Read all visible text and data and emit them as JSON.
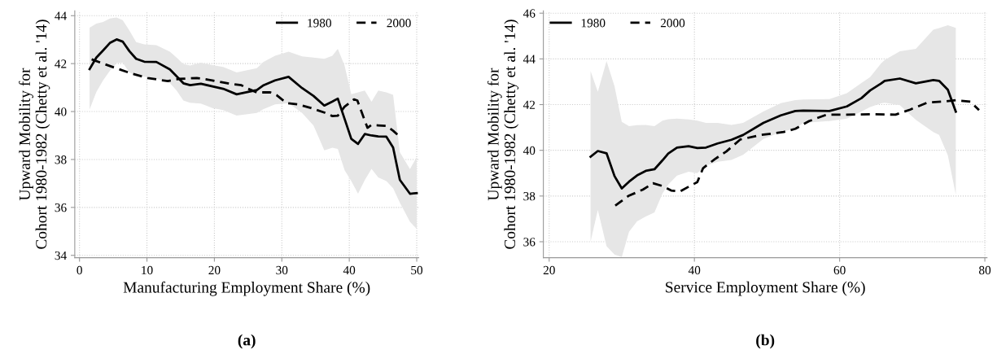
{
  "chart_data": [
    {
      "type": "line",
      "xlabel": "Manufacturing Employment Share (%)",
      "ylabel": "Upward Mobility for\nCohort 1980-1982 (Chetty et al. '14)",
      "xlim": [
        -0.7,
        50.3
      ],
      "ylim": [
        33.9,
        44.2
      ],
      "xticks": [
        0,
        10,
        20,
        30,
        40,
        50
      ],
      "yticks": [
        34,
        36,
        38,
        40,
        42,
        44
      ],
      "grid": true,
      "legend": "top right",
      "annotations": [
        "(a)"
      ],
      "series": [
        {
          "name": "1980",
          "color": "#000000",
          "line_style": "solid",
          "x": [
            1.5,
            2.5,
            3.5,
            4.5,
            5.5,
            6.4,
            7.4,
            8.4,
            9.6,
            11.4,
            13.4,
            14.4,
            15.4,
            16.4,
            18,
            19.7,
            21.3,
            23.3,
            26.3,
            27.3,
            29,
            31,
            33,
            34.7,
            36.3,
            37.5,
            38.3,
            39.3,
            40.3,
            41.3,
            42.3,
            43.3,
            44.3,
            45.5,
            46.5,
            47.5,
            49,
            50
          ],
          "values": [
            41.77,
            42.25,
            42.55,
            42.86,
            43.01,
            42.92,
            42.52,
            42.2,
            42.08,
            42.07,
            41.76,
            41.47,
            41.18,
            41.1,
            41.16,
            41.05,
            40.95,
            40.72,
            40.9,
            41.1,
            41.3,
            41.45,
            40.98,
            40.65,
            40.25,
            40.42,
            40.54,
            39.7,
            38.86,
            38.65,
            39.06,
            39.0,
            38.96,
            38.95,
            38.5,
            37.15,
            36.57,
            36.6
          ],
          "upper": [
            43.5,
            43.67,
            43.74,
            43.88,
            43.92,
            43.81,
            43.38,
            42.9,
            42.8,
            42.77,
            42.5,
            42.25,
            41.98,
            41.92,
            42.04,
            41.94,
            41.86,
            41.63,
            41.81,
            42.07,
            42.33,
            42.5,
            42.3,
            42.25,
            42.2,
            42.33,
            42.62,
            41.92,
            40.72,
            40.8,
            40.88,
            40.41,
            40.88,
            40.8,
            40.7,
            38.3,
            37.6,
            38.1
          ],
          "lower": [
            40.09,
            40.82,
            41.3,
            41.7,
            42.02,
            42.04,
            41.63,
            41.5,
            41.45,
            41.38,
            41.19,
            40.88,
            40.46,
            40.37,
            40.33,
            40.15,
            40.06,
            39.83,
            39.94,
            40.1,
            40.3,
            40.35,
            39.94,
            39.42,
            38.38,
            38.49,
            38.44,
            37.56,
            37.1,
            36.57,
            37.14,
            37.61,
            37.25,
            37.1,
            36.8,
            36.2,
            35.4,
            35.1
          ]
        },
        {
          "name": "2000",
          "color": "#000000",
          "line_style": "dashed",
          "x": [
            1.8,
            3.5,
            5.5,
            7.8,
            10.1,
            13.1,
            14.7,
            17.4,
            19.7,
            22.3,
            24,
            25,
            26.3,
            28.3,
            29.3,
            30.7,
            32.3,
            34.3,
            36.3,
            37.5,
            38.3,
            39.3,
            40.7,
            41.2,
            42.7,
            43.3,
            44.3,
            45.5,
            46.5,
            47.5
          ],
          "values": [
            42.18,
            42.0,
            41.8,
            41.58,
            41.4,
            41.27,
            41.36,
            41.4,
            41.3,
            41.16,
            41.1,
            40.95,
            40.8,
            40.8,
            40.67,
            40.35,
            40.3,
            40.15,
            39.96,
            39.81,
            39.83,
            40.2,
            40.51,
            40.46,
            39.32,
            39.44,
            39.42,
            39.4,
            39.2,
            38.95
          ]
        }
      ]
    },
    {
      "type": "line",
      "xlabel": "Service Employment Share (%)",
      "ylabel": "Upward Mobility for\nCohort 1980-1982 (Chetty et al. '14)",
      "xlim": [
        19.2,
        80.3
      ],
      "ylim": [
        35.3,
        46.1
      ],
      "xticks": [
        20,
        40,
        60,
        80
      ],
      "yticks": [
        36,
        38,
        40,
        42,
        44,
        46
      ],
      "grid": true,
      "legend": "top left",
      "annotations": [
        "(b)"
      ],
      "series": [
        {
          "name": "1980",
          "color": "#000000",
          "line_style": "solid",
          "x": [
            25.7,
            26.7,
            27.9,
            29.0,
            30.0,
            31.0,
            32.1,
            33.3,
            34.5,
            35.6,
            36.4,
            37.6,
            39.2,
            40.4,
            41.6,
            43.2,
            45.1,
            46.7,
            49.5,
            51.9,
            53.9,
            55,
            58.6,
            61,
            63,
            64.2,
            65.7,
            66.2,
            68.3,
            70.5,
            72.9,
            73.7,
            74.9,
            76.0
          ],
          "values": [
            39.72,
            39.97,
            39.87,
            38.87,
            38.33,
            38.63,
            38.9,
            39.1,
            39.17,
            39.56,
            39.86,
            40.12,
            40.18,
            40.1,
            40.12,
            40.3,
            40.46,
            40.67,
            41.2,
            41.53,
            41.72,
            41.74,
            41.72,
            41.92,
            42.28,
            42.62,
            42.92,
            43.04,
            43.14,
            42.93,
            43.07,
            43.04,
            42.65,
            41.69
          ],
          "upper": [
            43.47,
            42.56,
            43.91,
            42.8,
            41.24,
            41.06,
            41.1,
            41.11,
            41.06,
            41.3,
            41.36,
            41.39,
            41.35,
            41.3,
            41.2,
            41.2,
            41.11,
            41.2,
            41.7,
            42.06,
            42.2,
            42.22,
            42.24,
            42.5,
            42.94,
            43.2,
            43.8,
            43.95,
            44.33,
            44.44,
            45.28,
            45.35,
            45.47,
            45.36
          ],
          "lower": [
            36.0,
            37.39,
            35.8,
            35.44,
            35.33,
            36.44,
            36.89,
            37.1,
            37.28,
            38.11,
            38.5,
            38.89,
            39.06,
            39.0,
            39.33,
            39.5,
            39.58,
            39.8,
            40.5,
            40.8,
            40.95,
            41.2,
            41.28,
            41.39,
            41.7,
            41.89,
            42.05,
            42.08,
            41.97,
            41.33,
            40.8,
            40.67,
            39.78,
            38.06
          ]
        },
        {
          "name": "2000",
          "color": "#000000",
          "line_style": "dashed",
          "x": [
            29.1,
            30.9,
            32.9,
            34.3,
            35.6,
            36.8,
            38.0,
            39.4,
            40.4,
            41.2,
            42.8,
            44.4,
            46.3,
            49.1,
            52.3,
            53.9,
            55.8,
            58.2,
            61,
            64.2,
            67.7,
            69.7,
            72.1,
            74.1,
            76,
            78,
            79.2
          ],
          "values": [
            37.58,
            38.0,
            38.28,
            38.56,
            38.44,
            38.24,
            38.2,
            38.44,
            38.61,
            39.22,
            39.61,
            39.95,
            40.47,
            40.67,
            40.8,
            40.94,
            41.28,
            41.56,
            41.56,
            41.58,
            41.56,
            41.78,
            42.09,
            42.13,
            42.19,
            42.13,
            41.76
          ]
        }
      ]
    }
  ]
}
